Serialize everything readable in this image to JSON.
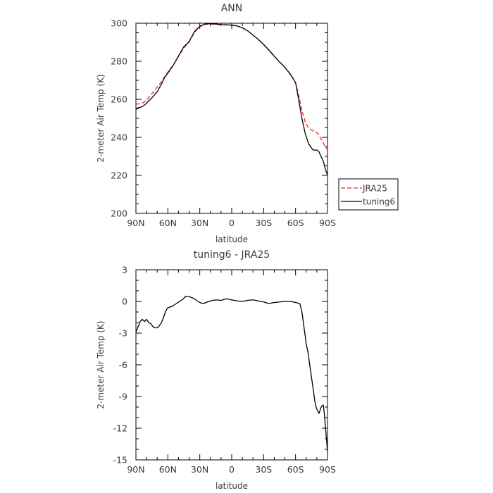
{
  "chart_data": [
    {
      "type": "line",
      "title": "ANN",
      "xlabel": "latitude",
      "ylabel": "2-meter Air Temp (K)",
      "xlim": [
        90,
        -90
      ],
      "ylim": [
        200,
        300
      ],
      "x_tick_values": [
        90,
        60,
        30,
        0,
        -30,
        -60,
        -90
      ],
      "x_tick_labels": [
        "90N",
        "60N",
        "30N",
        "0",
        "30S",
        "60S",
        "90S"
      ],
      "y_ticks": [
        200,
        220,
        240,
        260,
        280,
        300
      ],
      "grid": false,
      "legend": {
        "position": "right",
        "entries": [
          "JRA25",
          "tuning6"
        ]
      },
      "series": [
        {
          "name": "JRA25",
          "color": "#e8261c",
          "style": "dashed",
          "x": [
            90,
            87,
            84,
            80,
            77,
            73,
            70,
            66,
            63,
            60,
            55,
            50,
            45,
            40,
            35,
            30,
            25,
            20,
            15,
            10,
            5,
            0,
            -5,
            -10,
            -15,
            -20,
            -25,
            -30,
            -35,
            -40,
            -45,
            -50,
            -55,
            -60,
            -63,
            -66,
            -69,
            -72,
            -75,
            -78,
            -81,
            -84,
            -87,
            -90
          ],
          "y": [
            257.5,
            257.6,
            258.0,
            259.5,
            261.8,
            264.2,
            266.5,
            269.2,
            271.8,
            274.3,
            278.0,
            282.5,
            287.0,
            290.2,
            295.2,
            298.2,
            299.4,
            299.6,
            299.4,
            299.2,
            299.1,
            299.0,
            298.6,
            297.6,
            296.0,
            293.8,
            291.5,
            288.8,
            286.0,
            282.8,
            279.6,
            276.8,
            273.4,
            268.8,
            262.0,
            254.0,
            248.2,
            245.0,
            243.8,
            243.2,
            242.0,
            239.2,
            236.0,
            233.5
          ]
        },
        {
          "name": "tuning6",
          "color": "#000000",
          "style": "solid",
          "x": [
            90,
            88,
            86,
            84,
            82,
            80,
            78,
            76,
            73,
            70,
            66,
            63,
            60,
            55,
            50,
            45,
            40,
            35,
            30,
            25,
            20,
            15,
            10,
            5,
            0,
            -5,
            -10,
            -15,
            -20,
            -25,
            -30,
            -35,
            -40,
            -45,
            -50,
            -55,
            -60,
            -63,
            -66,
            -69,
            -72,
            -74,
            -76,
            -78,
            -80,
            -82,
            -84,
            -86,
            -88,
            -90
          ],
          "y": [
            254.6,
            255.6,
            255.8,
            256.2,
            257.0,
            258.0,
            259.2,
            260.2,
            262.0,
            264.0,
            268.0,
            271.6,
            273.8,
            277.8,
            282.8,
            287.6,
            290.4,
            295.6,
            298.4,
            299.6,
            299.8,
            299.6,
            299.3,
            299.2,
            299.0,
            298.6,
            297.6,
            296.0,
            293.8,
            291.5,
            288.8,
            285.8,
            282.6,
            279.6,
            276.8,
            273.2,
            268.8,
            259.6,
            249.8,
            242.2,
            237.0,
            235.2,
            233.6,
            233.2,
            233.4,
            232.4,
            229.8,
            227.6,
            223.4,
            220.0
          ]
        }
      ]
    },
    {
      "type": "line",
      "title": "tuning6 - JRA25",
      "xlabel": "latitude",
      "ylabel": "2-meter Air Temp (K)",
      "xlim": [
        90,
        -90
      ],
      "ylim": [
        -15,
        3
      ],
      "x_tick_values": [
        90,
        60,
        30,
        0,
        -30,
        -60,
        -90
      ],
      "x_tick_labels": [
        "90N",
        "60N",
        "30N",
        "0",
        "30S",
        "60S",
        "90S"
      ],
      "y_ticks": [
        3,
        0,
        -3,
        -6,
        -9,
        -12,
        -15
      ],
      "grid": false,
      "series": [
        {
          "name": "tuning6 - JRA25",
          "color": "#000000",
          "style": "solid",
          "x": [
            90,
            88,
            86,
            84,
            82,
            80,
            78,
            76,
            74,
            72,
            70,
            68,
            66,
            64,
            62,
            60,
            57,
            55,
            52,
            49,
            46,
            43,
            40,
            36,
            33,
            30,
            27,
            24,
            20,
            15,
            10,
            5,
            0,
            -5,
            -10,
            -15,
            -20,
            -25,
            -30,
            -35,
            -40,
            -45,
            -50,
            -55,
            -60,
            -62,
            -64,
            -66,
            -68,
            -70,
            -72,
            -73,
            -74,
            -75,
            -76,
            -77,
            -78,
            -79,
            -80,
            -82,
            -84,
            -85,
            -86,
            -87,
            -88,
            -89,
            -90
          ],
          "y": [
            -2.9,
            -2.4,
            -1.9,
            -1.7,
            -1.9,
            -1.7,
            -2.0,
            -2.1,
            -2.4,
            -2.5,
            -2.5,
            -2.3,
            -2.0,
            -1.5,
            -0.9,
            -0.6,
            -0.5,
            -0.4,
            -0.2,
            0.0,
            0.2,
            0.5,
            0.45,
            0.3,
            0.1,
            -0.1,
            -0.2,
            -0.1,
            0.05,
            0.15,
            0.1,
            0.25,
            0.15,
            0.05,
            0.0,
            0.1,
            0.15,
            0.05,
            -0.05,
            -0.2,
            -0.1,
            -0.05,
            0.0,
            0.0,
            -0.1,
            -0.15,
            -0.2,
            -1.0,
            -2.5,
            -4.0,
            -5.0,
            -5.8,
            -6.5,
            -7.2,
            -7.9,
            -8.6,
            -9.4,
            -9.9,
            -10.2,
            -10.6,
            -10.0,
            -9.9,
            -9.8,
            -10.6,
            -11.8,
            -13.0,
            -14.2
          ]
        }
      ]
    }
  ]
}
